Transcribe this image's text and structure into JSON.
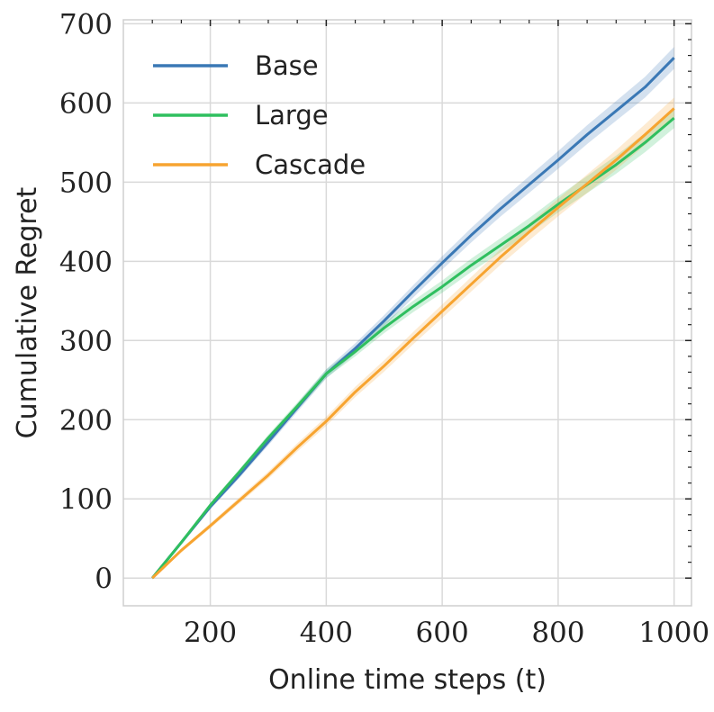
{
  "chart_data": {
    "type": "line",
    "xlabel": "Online time steps (t)",
    "ylabel": "Cumulative Regret",
    "xlim": [
      50,
      1030
    ],
    "ylim": [
      -35,
      705
    ],
    "xticks": [
      200,
      400,
      600,
      800,
      1000
    ],
    "yticks": [
      0,
      100,
      200,
      300,
      400,
      500,
      600,
      700
    ],
    "xtick_labels": [
      "200",
      "400",
      "600",
      "800",
      "1000"
    ],
    "ytick_labels": [
      "0",
      "100",
      "200",
      "300",
      "400",
      "500",
      "600",
      "700"
    ],
    "grid": true,
    "legend_position": "top-left",
    "series": [
      {
        "name": "Base",
        "color": "#3a78b5",
        "x": [
          100,
          150,
          200,
          250,
          300,
          350,
          400,
          450,
          500,
          550,
          600,
          650,
          700,
          750,
          800,
          850,
          900,
          950,
          1000
        ],
        "y": [
          0,
          45,
          90,
          130,
          172,
          215,
          258,
          290,
          325,
          362,
          398,
          433,
          466,
          497,
          528,
          560,
          590,
          620,
          657
        ],
        "band": 12
      },
      {
        "name": "Large",
        "color": "#2fbf5f",
        "x": [
          100,
          150,
          200,
          250,
          300,
          350,
          400,
          450,
          500,
          550,
          600,
          650,
          700,
          750,
          800,
          850,
          900,
          950,
          1000
        ],
        "y": [
          0,
          45,
          92,
          134,
          177,
          217,
          258,
          286,
          316,
          343,
          368,
          395,
          420,
          445,
          472,
          497,
          522,
          550,
          581
        ],
        "band": 11
      },
      {
        "name": "Cascade",
        "color": "#f7a430",
        "x": [
          100,
          150,
          200,
          250,
          300,
          350,
          400,
          450,
          500,
          550,
          600,
          650,
          700,
          750,
          800,
          850,
          900,
          950,
          1000
        ],
        "y": [
          0,
          35,
          66,
          98,
          130,
          165,
          198,
          235,
          268,
          303,
          337,
          371,
          405,
          437,
          468,
          498,
          528,
          560,
          593
        ],
        "band": 12
      }
    ]
  }
}
